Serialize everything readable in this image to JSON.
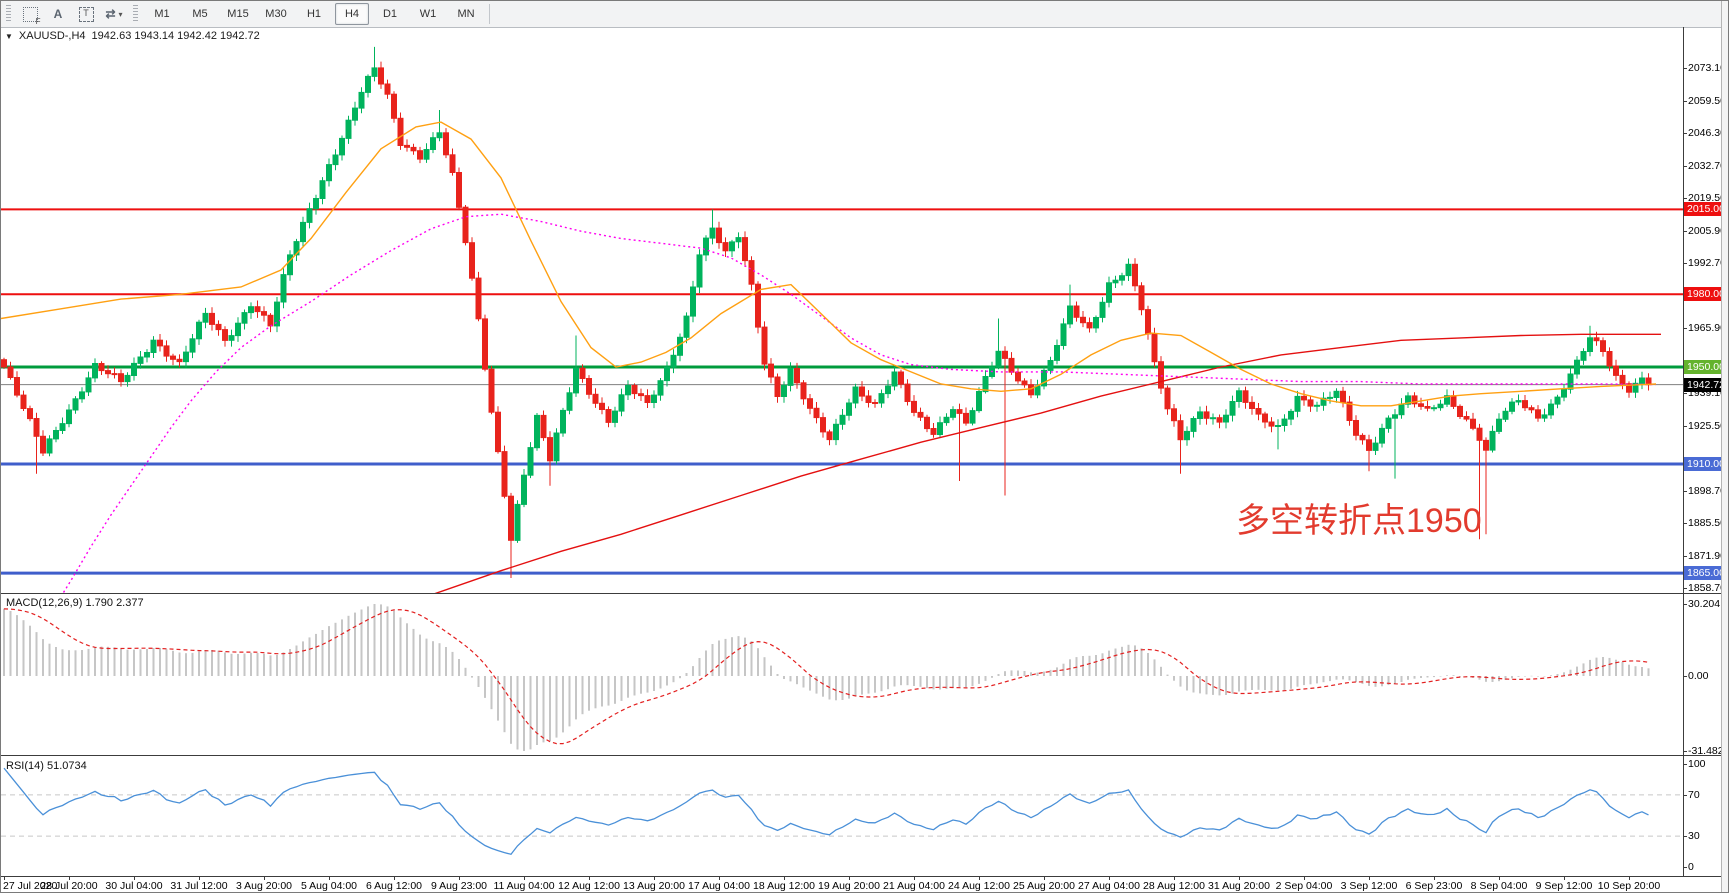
{
  "toolbar": {
    "icons": [
      {
        "name": "grid-f-icon",
        "glyph": "grid",
        "sub": "F"
      },
      {
        "name": "font-icon",
        "glyph": "A"
      },
      {
        "name": "textbox-icon",
        "glyph": "T"
      },
      {
        "name": "arrange-arrows-icon",
        "glyph": "⇄",
        "caret": "▾"
      }
    ],
    "timeframes": [
      "M1",
      "M5",
      "M15",
      "M30",
      "H1",
      "H4",
      "D1",
      "W1",
      "MN"
    ],
    "active_timeframe": "H4"
  },
  "chart_header": {
    "symbol": "XAUUSD-,H4",
    "quotes": "1942.63 1943.14 1942.42 1942.72",
    "dropdown_icon": "▼"
  },
  "annotation": {
    "text": "多空转折点1950",
    "color": "#e23b2e"
  },
  "price_axis": {
    "ticks": [
      "2073.10",
      "2059.50",
      "2046.30",
      "2032.70",
      "2019.50",
      "2005.90",
      "1992.70",
      "1965.90",
      "1939.10",
      "1925.50",
      "1898.70",
      "1885.50",
      "1871.90",
      "1858.70"
    ]
  },
  "levels": [
    {
      "label": "2015.00",
      "price": 2015.0,
      "line": "#ee0f0f",
      "badge": "#ee0f0f",
      "width": 2
    },
    {
      "label": "1980.00",
      "price": 1980.0,
      "line": "#ee0f0f",
      "badge": "#ee0f0f",
      "width": 2
    },
    {
      "label": "1950.00",
      "price": 1950.0,
      "line": "#009b3c",
      "badge": "#64b32d",
      "width": 3
    },
    {
      "label": "1910.00",
      "price": 1910.0,
      "line": "#3f5ecb",
      "badge": "#4a6bd5",
      "width": 3
    },
    {
      "label": "1865.00",
      "price": 1865.0,
      "line": "#3f5ecb",
      "badge": "#4a6bd5",
      "width": 3
    }
  ],
  "current_price": {
    "label": "1942.72",
    "price": 1942.72,
    "line": "#7f7f7f",
    "badge": "#000000"
  },
  "macd_panel": {
    "name": "MACD(12,26,9)",
    "values": "1.790 2.377",
    "axis": [
      {
        "label": "30.204",
        "v": 30.204
      },
      {
        "label": "0.00",
        "v": 0
      },
      {
        "label": "-31.482",
        "v": -31.482
      }
    ]
  },
  "rsi_panel": {
    "name": "RSI(14)",
    "value": "51.0734",
    "axis": [
      {
        "label": "100",
        "v": 100
      },
      {
        "label": "70",
        "v": 70
      },
      {
        "label": "30",
        "v": 30
      },
      {
        "label": "0",
        "v": 0
      }
    ],
    "dashed_levels": [
      70,
      30
    ]
  },
  "time_axis": [
    "27 Jul 2020",
    "28 Jul 20:00",
    "30 Jul 04:00",
    "31 Jul 12:00",
    "3 Aug 20:00",
    "5 Aug 04:00",
    "6 Aug 12:00",
    "9 Aug 23:00",
    "11 Aug 04:00",
    "12 Aug 12:00",
    "13 Aug 20:00",
    "17 Aug 04:00",
    "18 Aug 12:00",
    "19 Aug 20:00",
    "21 Aug 04:00",
    "24 Aug 12:00",
    "25 Aug 20:00",
    "27 Aug 04:00",
    "28 Aug 12:00",
    "31 Aug 20:00",
    "2 Sep 04:00",
    "3 Sep 12:00",
    "6 Sep 23:00",
    "8 Sep 04:00",
    "9 Sep 12:00",
    "10 Sep 20:00"
  ],
  "chart_data": {
    "type": "candlestick",
    "symbol": "XAUUSD",
    "timeframe": "H4",
    "bars": 254,
    "price_range_top": 2090,
    "price_range_bottom": 1857,
    "close_anchors": [
      [
        0,
        1950
      ],
      [
        3,
        1932
      ],
      [
        6,
        1915
      ],
      [
        9,
        1929
      ],
      [
        14,
        1950
      ],
      [
        18,
        1943
      ],
      [
        23,
        1962
      ],
      [
        27,
        1951
      ],
      [
        31,
        1971
      ],
      [
        34,
        1961
      ],
      [
        38,
        1977
      ],
      [
        41,
        1967
      ],
      [
        44,
        1995
      ],
      [
        47,
        2015
      ],
      [
        50,
        2034
      ],
      [
        53,
        2051
      ],
      [
        55,
        2063
      ],
      [
        57,
        2072
      ],
      [
        59,
        2061
      ],
      [
        61,
        2043
      ],
      [
        64,
        2038
      ],
      [
        67,
        2047
      ],
      [
        69,
        2028
      ],
      [
        71,
        2001
      ],
      [
        73,
        1969
      ],
      [
        75,
        1932
      ],
      [
        77,
        1899
      ],
      [
        78,
        1880
      ],
      [
        80,
        1906
      ],
      [
        82,
        1928
      ],
      [
        84,
        1911
      ],
      [
        86,
        1931
      ],
      [
        88,
        1950
      ],
      [
        90,
        1941
      ],
      [
        93,
        1928
      ],
      [
        96,
        1941
      ],
      [
        99,
        1934
      ],
      [
        102,
        1950
      ],
      [
        105,
        1971
      ],
      [
        107,
        1997
      ],
      [
        109,
        2006
      ],
      [
        111,
        1996
      ],
      [
        113,
        2004
      ],
      [
        115,
        1984
      ],
      [
        117,
        1953
      ],
      [
        119,
        1939
      ],
      [
        121,
        1948
      ],
      [
        124,
        1931
      ],
      [
        127,
        1920
      ],
      [
        129,
        1932
      ],
      [
        131,
        1942
      ],
      [
        134,
        1934
      ],
      [
        137,
        1946
      ],
      [
        140,
        1931
      ],
      [
        143,
        1924
      ],
      [
        146,
        1934
      ],
      [
        148,
        1926
      ],
      [
        151,
        1944
      ],
      [
        153,
        1956
      ],
      [
        156,
        1946
      ],
      [
        158,
        1940
      ],
      [
        161,
        1952
      ],
      [
        164,
        1973
      ],
      [
        167,
        1965
      ],
      [
        170,
        1985
      ],
      [
        173,
        1992
      ],
      [
        175,
        1974
      ],
      [
        177,
        1950
      ],
      [
        179,
        1932
      ],
      [
        181,
        1921
      ],
      [
        184,
        1933
      ],
      [
        187,
        1927
      ],
      [
        190,
        1938
      ],
      [
        193,
        1929
      ],
      [
        196,
        1926
      ],
      [
        199,
        1938
      ],
      [
        202,
        1933
      ],
      [
        205,
        1939
      ],
      [
        208,
        1923
      ],
      [
        210,
        1917
      ],
      [
        213,
        1929
      ],
      [
        216,
        1936
      ],
      [
        219,
        1931
      ],
      [
        222,
        1938
      ],
      [
        225,
        1929
      ],
      [
        227,
        1921
      ],
      [
        228,
        1915
      ],
      [
        230,
        1928
      ],
      [
        233,
        1936
      ],
      [
        236,
        1930
      ],
      [
        239,
        1938
      ],
      [
        242,
        1951
      ],
      [
        244,
        1961
      ],
      [
        246,
        1956
      ],
      [
        248,
        1946
      ],
      [
        250,
        1942
      ],
      [
        252,
        1946
      ],
      [
        253,
        1942.7
      ]
    ],
    "wick_lows": [
      [
        5,
        1906
      ],
      [
        78,
        1863
      ],
      [
        84,
        1901
      ],
      [
        147,
        1903
      ],
      [
        154,
        1897
      ],
      [
        181,
        1906
      ],
      [
        196,
        1916
      ],
      [
        210,
        1907
      ],
      [
        214,
        1904
      ],
      [
        227,
        1879
      ],
      [
        228,
        1881
      ]
    ],
    "wick_highs": [
      [
        57,
        2082
      ],
      [
        67,
        2056
      ],
      [
        88,
        1963
      ],
      [
        109,
        2015
      ],
      [
        153,
        1970
      ],
      [
        164,
        1984
      ],
      [
        173,
        1994
      ],
      [
        228,
        1917
      ],
      [
        244,
        1967
      ]
    ],
    "moving_averages": {
      "orange": [
        [
          0,
          1970
        ],
        [
          60,
          1974
        ],
        [
          120,
          1978
        ],
        [
          180,
          1980
        ],
        [
          240,
          1983
        ],
        [
          280,
          1990
        ],
        [
          310,
          2003
        ],
        [
          345,
          2022
        ],
        [
          380,
          2040
        ],
        [
          415,
          2049
        ],
        [
          440,
          2051
        ],
        [
          470,
          2044
        ],
        [
          500,
          2028
        ],
        [
          530,
          2002
        ],
        [
          560,
          1977
        ],
        [
          590,
          1958
        ],
        [
          615,
          1950
        ],
        [
          640,
          1952
        ],
        [
          665,
          1956
        ],
        [
          690,
          1962
        ],
        [
          720,
          1972
        ],
        [
          760,
          1982
        ],
        [
          790,
          1984
        ],
        [
          820,
          1972
        ],
        [
          850,
          1960
        ],
        [
          880,
          1953
        ],
        [
          910,
          1948
        ],
        [
          940,
          1943
        ],
        [
          970,
          1941
        ],
        [
          1000,
          1940
        ],
        [
          1030,
          1941
        ],
        [
          1060,
          1947
        ],
        [
          1090,
          1955
        ],
        [
          1120,
          1961
        ],
        [
          1150,
          1964
        ],
        [
          1180,
          1963
        ],
        [
          1210,
          1956
        ],
        [
          1240,
          1949
        ],
        [
          1270,
          1943
        ],
        [
          1300,
          1939
        ],
        [
          1330,
          1936
        ],
        [
          1360,
          1934
        ],
        [
          1390,
          1934
        ],
        [
          1420,
          1936
        ],
        [
          1450,
          1938
        ],
        [
          1480,
          1939
        ],
        [
          1520,
          1940
        ],
        [
          1560,
          1941
        ],
        [
          1600,
          1942
        ],
        [
          1655,
          1943
        ]
      ],
      "magenta": [
        [
          52,
          1850
        ],
        [
          70,
          1862
        ],
        [
          90,
          1876
        ],
        [
          110,
          1889
        ],
        [
          130,
          1901
        ],
        [
          150,
          1913
        ],
        [
          170,
          1925
        ],
        [
          190,
          1936
        ],
        [
          215,
          1948
        ],
        [
          240,
          1958
        ],
        [
          270,
          1967
        ],
        [
          310,
          1977
        ],
        [
          350,
          1988
        ],
        [
          390,
          1998
        ],
        [
          430,
          2007
        ],
        [
          465,
          2012
        ],
        [
          500,
          2013
        ],
        [
          540,
          2010
        ],
        [
          580,
          2006
        ],
        [
          620,
          2003
        ],
        [
          660,
          2001
        ],
        [
          700,
          1999
        ],
        [
          730,
          1995
        ],
        [
          760,
          1988
        ],
        [
          790,
          1980
        ],
        [
          820,
          1971
        ],
        [
          850,
          1962
        ],
        [
          880,
          1955
        ],
        [
          910,
          1951
        ],
        [
          950,
          1949
        ],
        [
          1000,
          1948
        ],
        [
          1060,
          1948
        ],
        [
          1120,
          1947
        ],
        [
          1180,
          1946
        ],
        [
          1240,
          1945
        ],
        [
          1300,
          1944
        ],
        [
          1360,
          1944
        ],
        [
          1420,
          1943
        ],
        [
          1480,
          1943
        ],
        [
          1540,
          1943
        ],
        [
          1600,
          1943
        ],
        [
          1655,
          1942.8
        ]
      ],
      "red": [
        [
          430,
          1856
        ],
        [
          500,
          1866
        ],
        [
          560,
          1874
        ],
        [
          620,
          1881
        ],
        [
          680,
          1889
        ],
        [
          740,
          1897
        ],
        [
          800,
          1905
        ],
        [
          860,
          1912
        ],
        [
          920,
          1919
        ],
        [
          980,
          1925
        ],
        [
          1040,
          1931
        ],
        [
          1100,
          1938
        ],
        [
          1160,
          1944
        ],
        [
          1220,
          1950
        ],
        [
          1280,
          1955
        ],
        [
          1340,
          1958
        ],
        [
          1400,
          1961
        ],
        [
          1460,
          1962
        ],
        [
          1520,
          1963
        ],
        [
          1580,
          1963.5
        ],
        [
          1660,
          1963.5
        ]
      ]
    }
  },
  "colors": {
    "bull": "#00b35c",
    "bear": "#e8231c",
    "ma_orange": "#ffa012",
    "ma_magenta": "#ff00f0",
    "ma_red": "#e41010",
    "macd_bar": "#c6c6c6",
    "macd_signal": "#e32020",
    "rsi_line": "#4a90d8",
    "rsi_level": "#c8c8c8"
  }
}
